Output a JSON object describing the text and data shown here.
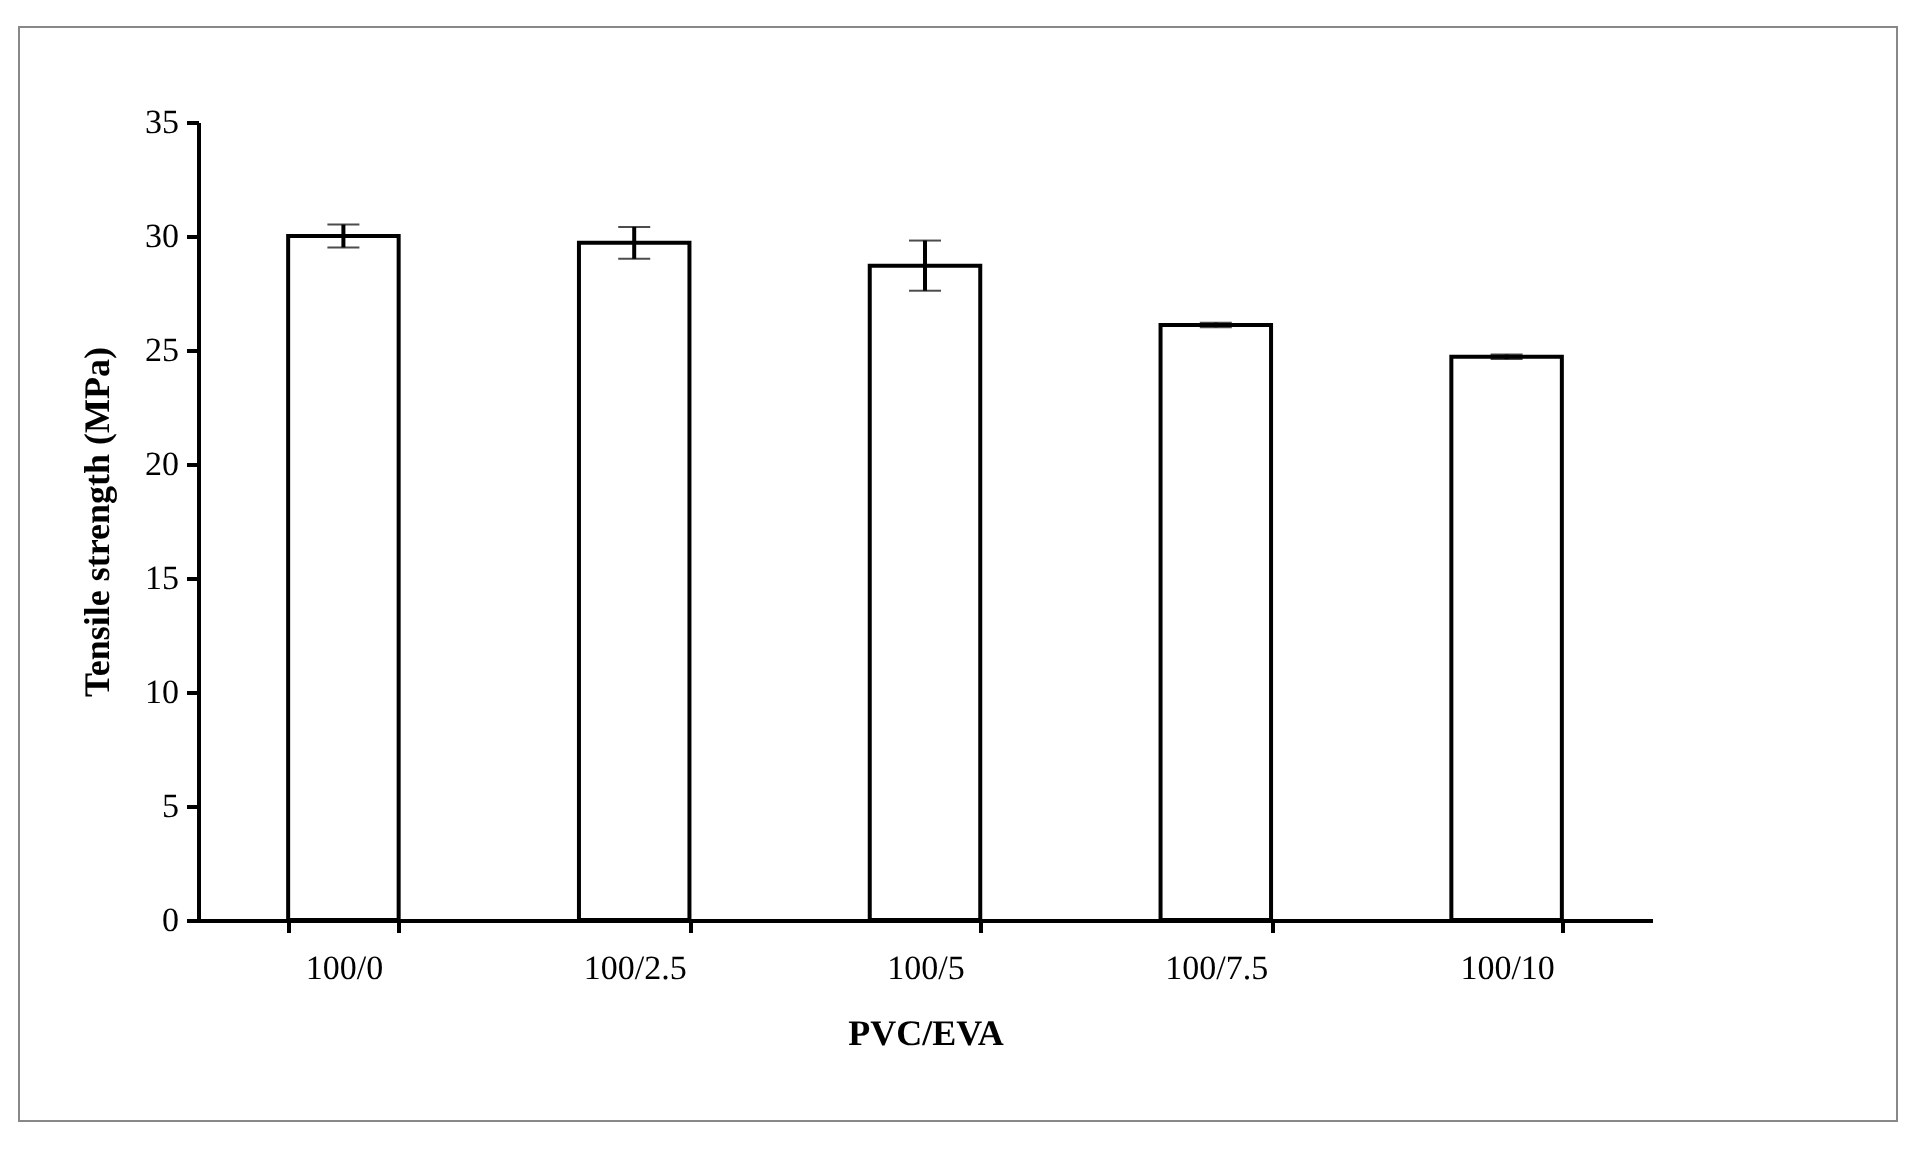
{
  "chart_data": {
    "type": "bar",
    "xlabel": "PVC/EVA",
    "ylabel": "Tensile strength (MPa)",
    "categories": [
      "100/0",
      "100/2.5",
      "100/5",
      "100/7.5",
      "100/10"
    ],
    "values": [
      30.0,
      29.7,
      28.7,
      26.1,
      24.7
    ],
    "errors": [
      0.5,
      0.7,
      1.1,
      0.1,
      0.1
    ],
    "color": "#ffffff",
    "ylim": [
      0,
      35
    ],
    "yticks": [
      0,
      5,
      10,
      15,
      20,
      25,
      30,
      35
    ]
  }
}
